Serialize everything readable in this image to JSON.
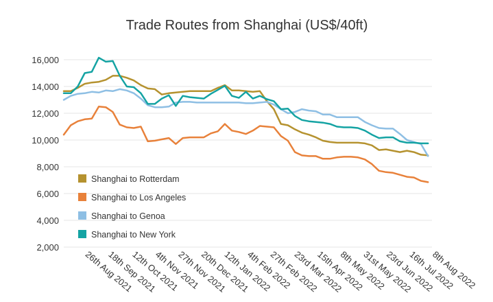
{
  "chart_data": {
    "type": "line",
    "title": "Trade Routes from Shanghai (US$/40ft)",
    "xlabel": "",
    "ylabel": "",
    "ylim": [
      2000,
      16000
    ],
    "yticks": [
      2000,
      4000,
      6000,
      8000,
      10000,
      12000,
      14000,
      16000
    ],
    "ytick_labels": [
      "2,000",
      "4,000",
      "6,000",
      "8,000",
      "10,000",
      "12,000",
      "14,000",
      "16,000"
    ],
    "x_start": "2021-08-05",
    "x_end": "2022-08-08",
    "xtick_labels": [
      "26th Aug 2021",
      "18th Sep 2021",
      "12th Oct 2021",
      "4th Nov 2021",
      "27th Nov 2021",
      "20th Dec 2021",
      "12th Jan 2022",
      "4th Feb 2022",
      "27th Feb 2022",
      "23rd Mar 2022",
      "15th Apr 2022",
      "8th May 2022",
      "31st May 2022",
      "23rd Jun 2022",
      "16th Jul 2022",
      "8th Aug 2022"
    ],
    "xtick_dates": [
      "2021-08-26",
      "2021-09-18",
      "2021-10-12",
      "2021-11-04",
      "2021-11-27",
      "2021-12-20",
      "2022-01-12",
      "2022-02-04",
      "2022-02-27",
      "2022-03-23",
      "2022-04-15",
      "2022-05-08",
      "2022-05-31",
      "2022-06-23",
      "2022-07-16",
      "2022-08-08"
    ],
    "grid": true,
    "legend_position": "bottom-left",
    "series": [
      {
        "name": "Shanghai to Rotterdam",
        "color": "#b5922f",
        "points": [
          [
            "2021-08-05",
            13650
          ],
          [
            "2021-08-12",
            13650
          ],
          [
            "2021-08-19",
            13900
          ],
          [
            "2021-08-26",
            14200
          ],
          [
            "2021-09-02",
            14300
          ],
          [
            "2021-09-09",
            14350
          ],
          [
            "2021-09-16",
            14500
          ],
          [
            "2021-09-23",
            14800
          ],
          [
            "2021-09-30",
            14800
          ],
          [
            "2021-10-07",
            14650
          ],
          [
            "2021-10-14",
            14450
          ],
          [
            "2021-10-21",
            14100
          ],
          [
            "2021-10-28",
            13850
          ],
          [
            "2021-11-04",
            13800
          ],
          [
            "2021-11-11",
            13400
          ],
          [
            "2021-11-18",
            13500
          ],
          [
            "2021-11-25",
            13550
          ],
          [
            "2021-12-02",
            13600
          ],
          [
            "2021-12-09",
            13650
          ],
          [
            "2021-12-16",
            13650
          ],
          [
            "2021-12-23",
            13650
          ],
          [
            "2021-12-30",
            13650
          ],
          [
            "2022-01-06",
            13900
          ],
          [
            "2022-01-13",
            14100
          ],
          [
            "2022-01-20",
            13700
          ],
          [
            "2022-01-27",
            13700
          ],
          [
            "2022-02-03",
            13650
          ],
          [
            "2022-02-10",
            13600
          ],
          [
            "2022-02-17",
            13650
          ],
          [
            "2022-02-24",
            12900
          ],
          [
            "2022-03-03",
            12300
          ],
          [
            "2022-03-10",
            11200
          ],
          [
            "2022-03-17",
            11100
          ],
          [
            "2022-03-24",
            10800
          ],
          [
            "2022-03-31",
            10550
          ],
          [
            "2022-04-07",
            10400
          ],
          [
            "2022-04-14",
            10200
          ],
          [
            "2022-04-21",
            9950
          ],
          [
            "2022-04-28",
            9850
          ],
          [
            "2022-05-05",
            9800
          ],
          [
            "2022-05-12",
            9800
          ],
          [
            "2022-05-19",
            9800
          ],
          [
            "2022-05-26",
            9800
          ],
          [
            "2022-06-02",
            9750
          ],
          [
            "2022-06-09",
            9600
          ],
          [
            "2022-06-16",
            9250
          ],
          [
            "2022-06-23",
            9300
          ],
          [
            "2022-06-30",
            9200
          ],
          [
            "2022-07-07",
            9100
          ],
          [
            "2022-07-14",
            9200
          ],
          [
            "2022-07-21",
            9100
          ],
          [
            "2022-07-28",
            8900
          ],
          [
            "2022-08-04",
            8850
          ]
        ]
      },
      {
        "name": "Shanghai to Los Angeles",
        "color": "#e8813a",
        "points": [
          [
            "2021-08-05",
            10400
          ],
          [
            "2021-08-12",
            11100
          ],
          [
            "2021-08-19",
            11400
          ],
          [
            "2021-08-26",
            11550
          ],
          [
            "2021-09-02",
            11600
          ],
          [
            "2021-09-09",
            12500
          ],
          [
            "2021-09-16",
            12450
          ],
          [
            "2021-09-23",
            12100
          ],
          [
            "2021-09-30",
            11150
          ],
          [
            "2021-10-07",
            10950
          ],
          [
            "2021-10-14",
            10900
          ],
          [
            "2021-10-21",
            11000
          ],
          [
            "2021-10-28",
            9900
          ],
          [
            "2021-11-04",
            9950
          ],
          [
            "2021-11-11",
            10050
          ],
          [
            "2021-11-18",
            10150
          ],
          [
            "2021-11-25",
            9700
          ],
          [
            "2021-12-02",
            10150
          ],
          [
            "2021-12-09",
            10200
          ],
          [
            "2021-12-16",
            10200
          ],
          [
            "2021-12-23",
            10200
          ],
          [
            "2021-12-30",
            10500
          ],
          [
            "2022-01-06",
            10650
          ],
          [
            "2022-01-13",
            11200
          ],
          [
            "2022-01-20",
            10700
          ],
          [
            "2022-01-27",
            10600
          ],
          [
            "2022-02-03",
            10450
          ],
          [
            "2022-02-10",
            10700
          ],
          [
            "2022-02-17",
            11050
          ],
          [
            "2022-02-24",
            11000
          ],
          [
            "2022-03-03",
            10950
          ],
          [
            "2022-03-10",
            10300
          ],
          [
            "2022-03-17",
            9950
          ],
          [
            "2022-03-24",
            9100
          ],
          [
            "2022-03-31",
            8850
          ],
          [
            "2022-04-07",
            8800
          ],
          [
            "2022-04-14",
            8800
          ],
          [
            "2022-04-21",
            8600
          ],
          [
            "2022-04-28",
            8600
          ],
          [
            "2022-05-05",
            8700
          ],
          [
            "2022-05-12",
            8750
          ],
          [
            "2022-05-19",
            8750
          ],
          [
            "2022-05-26",
            8700
          ],
          [
            "2022-06-02",
            8550
          ],
          [
            "2022-06-09",
            8200
          ],
          [
            "2022-06-16",
            7700
          ],
          [
            "2022-06-23",
            7600
          ],
          [
            "2022-06-30",
            7550
          ],
          [
            "2022-07-07",
            7400
          ],
          [
            "2022-07-14",
            7250
          ],
          [
            "2022-07-21",
            7200
          ],
          [
            "2022-07-28",
            6950
          ],
          [
            "2022-08-04",
            6850
          ]
        ]
      },
      {
        "name": "Shanghai to Genoa",
        "color": "#8ebfe4",
        "points": [
          [
            "2021-08-05",
            13000
          ],
          [
            "2021-08-12",
            13300
          ],
          [
            "2021-08-19",
            13450
          ],
          [
            "2021-08-26",
            13500
          ],
          [
            "2021-09-02",
            13600
          ],
          [
            "2021-09-09",
            13550
          ],
          [
            "2021-09-16",
            13700
          ],
          [
            "2021-09-23",
            13650
          ],
          [
            "2021-09-30",
            13800
          ],
          [
            "2021-10-07",
            13700
          ],
          [
            "2021-10-14",
            13500
          ],
          [
            "2021-10-21",
            13100
          ],
          [
            "2021-10-28",
            12600
          ],
          [
            "2021-11-04",
            12450
          ],
          [
            "2021-11-11",
            12450
          ],
          [
            "2021-11-18",
            12500
          ],
          [
            "2021-11-25",
            12800
          ],
          [
            "2021-12-02",
            12850
          ],
          [
            "2021-12-09",
            12850
          ],
          [
            "2021-12-16",
            12800
          ],
          [
            "2021-12-23",
            12800
          ],
          [
            "2021-12-30",
            12800
          ],
          [
            "2022-01-06",
            12800
          ],
          [
            "2022-01-13",
            12800
          ],
          [
            "2022-01-20",
            12800
          ],
          [
            "2022-01-27",
            12800
          ],
          [
            "2022-02-03",
            12750
          ],
          [
            "2022-02-10",
            12750
          ],
          [
            "2022-02-17",
            12800
          ],
          [
            "2022-02-24",
            12850
          ],
          [
            "2022-03-03",
            12650
          ],
          [
            "2022-03-10",
            12300
          ],
          [
            "2022-03-17",
            12000
          ],
          [
            "2022-03-24",
            12100
          ],
          [
            "2022-03-31",
            12300
          ],
          [
            "2022-04-07",
            12200
          ],
          [
            "2022-04-14",
            12150
          ],
          [
            "2022-04-21",
            11900
          ],
          [
            "2022-04-28",
            11900
          ],
          [
            "2022-05-05",
            11700
          ],
          [
            "2022-05-12",
            11700
          ],
          [
            "2022-05-19",
            11700
          ],
          [
            "2022-05-26",
            11700
          ],
          [
            "2022-06-02",
            11350
          ],
          [
            "2022-06-09",
            11100
          ],
          [
            "2022-06-16",
            10900
          ],
          [
            "2022-06-23",
            10850
          ],
          [
            "2022-06-30",
            10850
          ],
          [
            "2022-07-07",
            10450
          ],
          [
            "2022-07-14",
            10000
          ],
          [
            "2022-07-21",
            9850
          ],
          [
            "2022-07-28",
            9700
          ],
          [
            "2022-08-04",
            8800
          ]
        ]
      },
      {
        "name": "Shanghai to New York",
        "color": "#14a3a3",
        "points": [
          [
            "2021-08-05",
            13500
          ],
          [
            "2021-08-12",
            13500
          ],
          [
            "2021-08-19",
            14000
          ],
          [
            "2021-08-26",
            15000
          ],
          [
            "2021-09-02",
            15100
          ],
          [
            "2021-09-09",
            16150
          ],
          [
            "2021-09-16",
            15850
          ],
          [
            "2021-09-23",
            15900
          ],
          [
            "2021-09-30",
            14800
          ],
          [
            "2021-10-07",
            14000
          ],
          [
            "2021-10-14",
            13950
          ],
          [
            "2021-10-21",
            13500
          ],
          [
            "2021-10-28",
            12700
          ],
          [
            "2021-11-04",
            12700
          ],
          [
            "2021-11-11",
            13100
          ],
          [
            "2021-11-18",
            13350
          ],
          [
            "2021-11-25",
            12550
          ],
          [
            "2021-12-02",
            13300
          ],
          [
            "2021-12-09",
            13200
          ],
          [
            "2021-12-16",
            13150
          ],
          [
            "2021-12-23",
            13100
          ],
          [
            "2021-12-30",
            13450
          ],
          [
            "2022-01-06",
            13750
          ],
          [
            "2022-01-13",
            14050
          ],
          [
            "2022-01-20",
            13300
          ],
          [
            "2022-01-27",
            13150
          ],
          [
            "2022-02-03",
            13600
          ],
          [
            "2022-02-10",
            13100
          ],
          [
            "2022-02-17",
            13300
          ],
          [
            "2022-02-24",
            13050
          ],
          [
            "2022-03-03",
            12900
          ],
          [
            "2022-03-10",
            12300
          ],
          [
            "2022-03-17",
            12350
          ],
          [
            "2022-03-24",
            11800
          ],
          [
            "2022-03-31",
            11500
          ],
          [
            "2022-04-07",
            11400
          ],
          [
            "2022-04-14",
            11350
          ],
          [
            "2022-04-21",
            11300
          ],
          [
            "2022-04-28",
            11200
          ],
          [
            "2022-05-05",
            11000
          ],
          [
            "2022-05-12",
            10950
          ],
          [
            "2022-05-19",
            10950
          ],
          [
            "2022-05-26",
            10900
          ],
          [
            "2022-06-02",
            10700
          ],
          [
            "2022-06-09",
            10400
          ],
          [
            "2022-06-16",
            10150
          ],
          [
            "2022-06-23",
            10200
          ],
          [
            "2022-06-30",
            10200
          ],
          [
            "2022-07-07",
            9900
          ],
          [
            "2022-07-14",
            9800
          ],
          [
            "2022-07-21",
            9800
          ],
          [
            "2022-07-28",
            9750
          ],
          [
            "2022-08-04",
            9750
          ]
        ]
      }
    ]
  }
}
